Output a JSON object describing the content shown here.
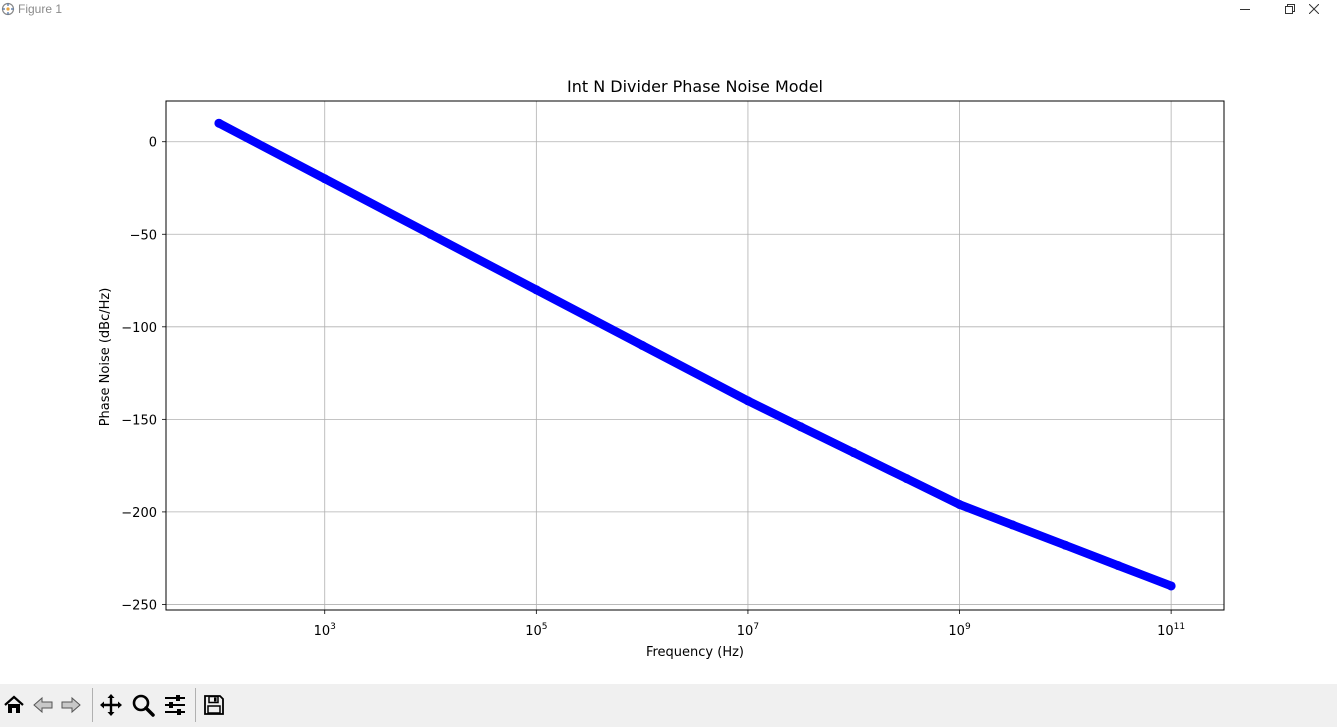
{
  "window": {
    "title": "Figure 1",
    "controls": [
      "minimize",
      "restore",
      "close"
    ]
  },
  "toolbar": {
    "buttons": [
      "home-icon",
      "back-icon",
      "forward-icon",
      "pan-icon",
      "zoom-icon",
      "configure-subplots-icon",
      "save-icon"
    ]
  },
  "chart_data": {
    "type": "scatter",
    "title": "Int N Divider Phase Noise Model",
    "xlabel": "Frequency (Hz)",
    "ylabel": "Phase Noise (dBc/Hz)",
    "xscale": "log",
    "xlim": [
      31.6,
      316000000000
    ],
    "ylim": [
      -253,
      22
    ],
    "xticks": [
      1000,
      100000,
      10000000,
      1000000000,
      100000000000
    ],
    "xtick_labels": [
      {
        "base": "10",
        "exp": "3"
      },
      {
        "base": "10",
        "exp": "5"
      },
      {
        "base": "10",
        "exp": "7"
      },
      {
        "base": "10",
        "exp": "9"
      },
      {
        "base": "10",
        "exp": "11"
      }
    ],
    "yticks": [
      0,
      -50,
      -100,
      -150,
      -200,
      -250
    ],
    "ytick_labels": [
      "0",
      "−50",
      "−100",
      "−150",
      "−200",
      "−250"
    ],
    "grid": true,
    "series": [
      {
        "color": "#0000ff",
        "x": [
          100,
          1000,
          10000,
          100000,
          1000000,
          10000000,
          31600000,
          100000000,
          316000000,
          1000000000,
          3160000000,
          10000000000,
          31600000000,
          100000000000
        ],
        "y": [
          10,
          -20,
          -50,
          -80,
          -110,
          -140,
          -154,
          -168,
          -182,
          -196,
          -207,
          -218,
          -229,
          -240
        ]
      }
    ]
  }
}
